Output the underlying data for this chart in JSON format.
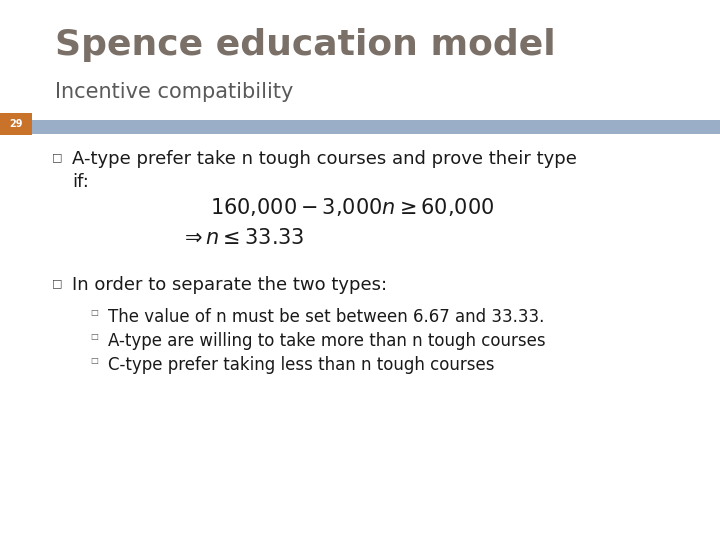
{
  "title": "Spence education model",
  "subtitle": "Incentive compatibility",
  "slide_number": "29",
  "title_color": "#7a7068",
  "subtitle_color": "#5a5a5a",
  "background_color": "#ffffff",
  "divider_color": "#9aaec8",
  "slide_num_bg": "#c8722a",
  "slide_num_color": "#ffffff",
  "bullet1_line1": "A-type prefer take n tough courses and prove their type",
  "bullet1_line2": "if:",
  "bullet2_text": "In order to separate the two types:",
  "sub_bullet1": "The value of n must be set between 6.67 and 33.33.",
  "sub_bullet2": "A-type are willing to take more than n tough courses",
  "sub_bullet3": "C-type prefer taking less than n tough courses",
  "title_fontsize": 26,
  "subtitle_fontsize": 15,
  "body_fontsize": 13,
  "formula_fontsize": 13,
  "sub_fontsize": 12
}
